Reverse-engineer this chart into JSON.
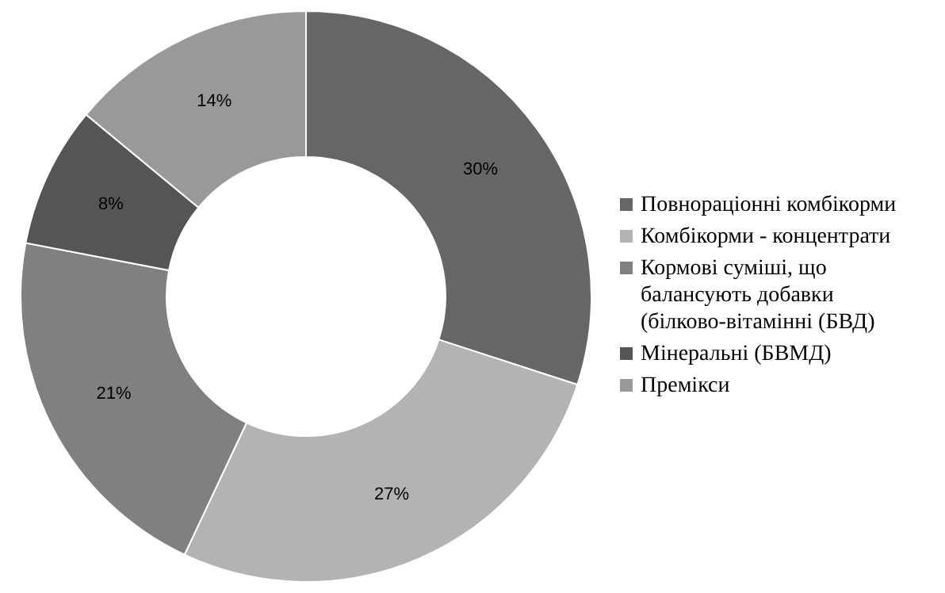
{
  "chart_data": {
    "type": "donut",
    "categories": [
      "Повнораціонні комбікорми",
      "Комбікорми - концентрати",
      "Кормові суміші, що балансують добавки (білково-вітамінні (БВД)",
      "Мінеральні (БВМД)",
      "Премікси"
    ],
    "values": [
      30,
      27,
      21,
      8,
      14
    ],
    "colors": [
      "#666666",
      "#b3b3b3",
      "#808080",
      "#555555",
      "#999999"
    ],
    "value_labels": [
      "30%",
      "27%",
      "21%",
      "8%",
      "14%"
    ],
    "legend": "right"
  }
}
